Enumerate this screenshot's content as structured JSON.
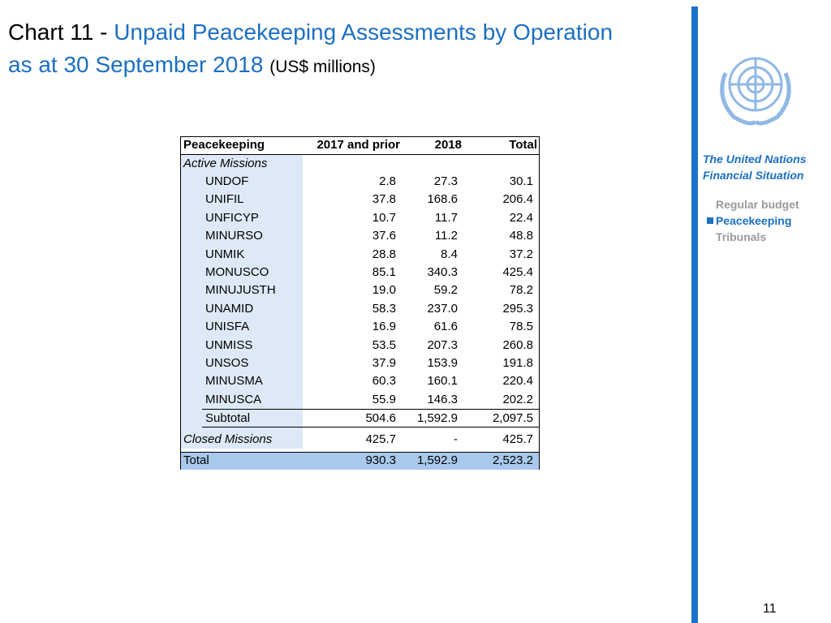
{
  "header": {
    "chart_no": "Chart 11 -",
    "title": "Unpaid Peacekeeping Assessments by Operation",
    "subtitle": "as at 30 September 2018",
    "unit": "(US$ millions)"
  },
  "sidebar": {
    "heading": "The United Nations Financial Situation",
    "nav": [
      "Regular budget",
      "Peacekeeping",
      "Tribunals"
    ],
    "active": 1
  },
  "page_number": "11",
  "table": {
    "columns": [
      "Peacekeeping",
      "2017 and prior",
      "2018",
      "Total"
    ],
    "active_label": "Active Missions",
    "rows": [
      [
        "UNDOF",
        "2.8",
        "27.3",
        "30.1"
      ],
      [
        "UNIFIL",
        "37.8",
        "168.6",
        "206.4"
      ],
      [
        "UNFICYP",
        "10.7",
        "11.7",
        "22.4"
      ],
      [
        "MINURSO",
        "37.6",
        "11.2",
        "48.8"
      ],
      [
        "UNMIK",
        "28.8",
        "8.4",
        "37.2"
      ],
      [
        "MONUSCO",
        "85.1",
        "340.3",
        "425.4"
      ],
      [
        "MINUJUSTH",
        "19.0",
        "59.2",
        "78.2"
      ],
      [
        "UNAMID",
        "58.3",
        "237.0",
        "295.3"
      ],
      [
        "UNISFA",
        "16.9",
        "61.6",
        "78.5"
      ],
      [
        "UNMISS",
        "53.5",
        "207.3",
        "260.8"
      ],
      [
        "UNSOS",
        "37.9",
        "153.9",
        "191.8"
      ],
      [
        "MINUSMA",
        "60.3",
        "160.1",
        "220.4"
      ],
      [
        "MINUSCA",
        "55.9",
        "146.3",
        "202.2"
      ]
    ],
    "subtotal": [
      "Subtotal",
      "504.6",
      "1,592.9",
      "2,097.5"
    ],
    "closed": [
      "Closed Missions",
      "425.7",
      "-",
      "425.7"
    ],
    "total": [
      "Total",
      "930.3",
      "1,592.9",
      "2,523.2"
    ]
  }
}
